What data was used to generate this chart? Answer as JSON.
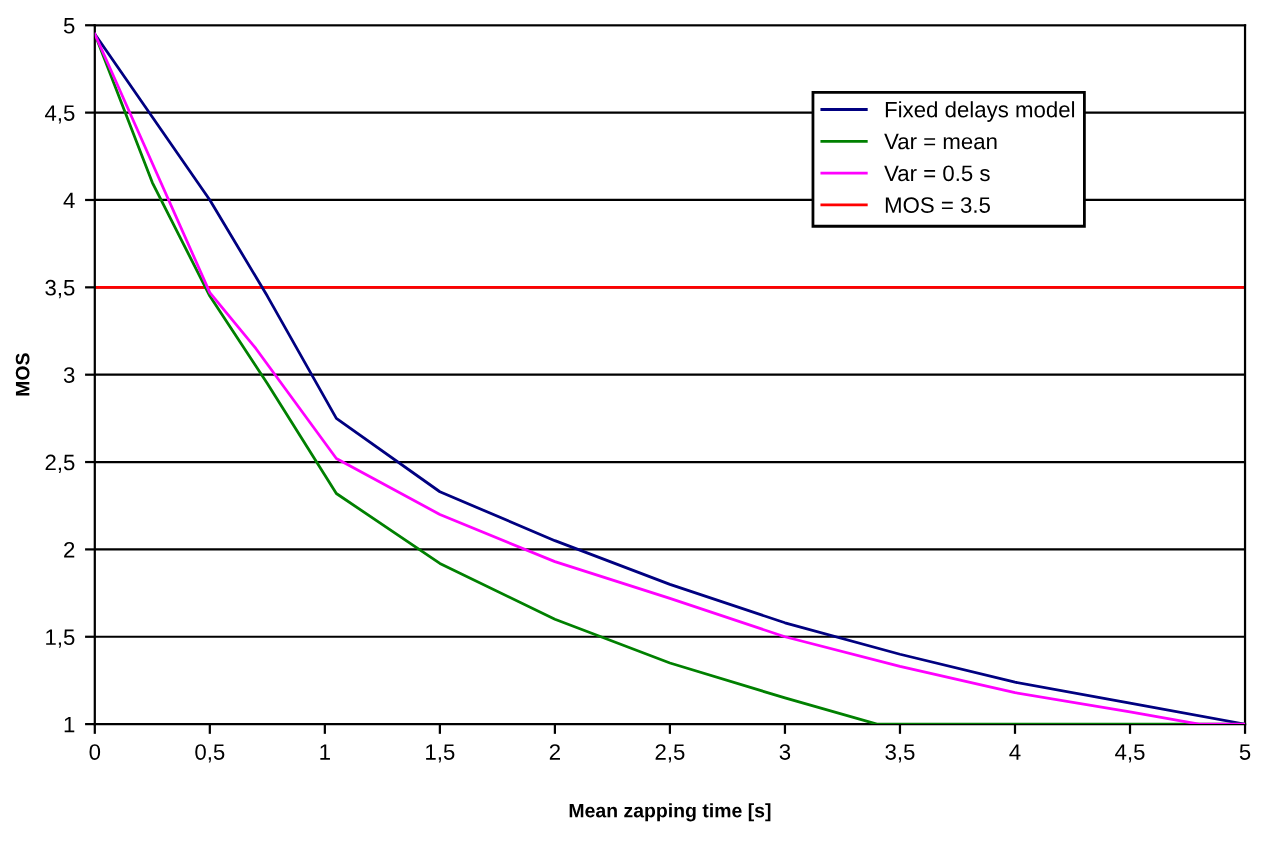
{
  "chart_data": {
    "type": "line",
    "xlabel": "Mean zapping time [s]",
    "ylabel": "MOS",
    "xlim": [
      0,
      5
    ],
    "ylim": [
      1,
      5
    ],
    "xticks": [
      0,
      {
        "value": 0.5,
        "label": "0,5"
      },
      1,
      {
        "value": 1.5,
        "label": "1,5"
      },
      2,
      {
        "value": 2.5,
        "label": "2,5"
      },
      3,
      {
        "value": 3.5,
        "label": "3,5"
      },
      4,
      {
        "value": 4.5,
        "label": "4,5"
      },
      5
    ],
    "yticks": [
      1,
      {
        "value": 1.5,
        "label": "1,5"
      },
      2,
      {
        "value": 2.5,
        "label": "2,5"
      },
      3,
      {
        "value": 3.5,
        "label": "3,5"
      },
      4,
      {
        "value": 4.5,
        "label": "4,5"
      },
      5
    ],
    "grid": "y",
    "legend": "top right",
    "marker": "none",
    "line_style": "solid",
    "series": [
      {
        "name": "Fixed delays model",
        "color": "#000080",
        "x": [
          0,
          0.5,
          0.75,
          1.05,
          1.5,
          2,
          2.5,
          3,
          3.5,
          4,
          4.5,
          5
        ],
        "values": [
          4.95,
          4.0,
          3.45,
          2.75,
          2.33,
          2.05,
          1.8,
          1.58,
          1.4,
          1.24,
          1.12,
          1.0
        ]
      },
      {
        "name": "Var = mean",
        "color": "#008000",
        "x": [
          0,
          0.25,
          0.5,
          0.75,
          1.05,
          1.5,
          2,
          2.5,
          3,
          3.4,
          5
        ],
        "values": [
          4.95,
          4.1,
          3.45,
          2.95,
          2.32,
          1.92,
          1.6,
          1.35,
          1.15,
          1.0,
          1.0
        ]
      },
      {
        "name": "Var = 0.5 s",
        "color": "#ff00ff",
        "x": [
          0,
          0.5,
          0.7,
          1.05,
          1.5,
          2,
          2.5,
          3,
          3.5,
          4,
          4.5,
          4.8,
          5
        ],
        "values": [
          4.95,
          3.47,
          3.15,
          2.52,
          2.2,
          1.93,
          1.72,
          1.5,
          1.33,
          1.18,
          1.07,
          1.0,
          1.0
        ]
      }
    ],
    "ref_lines": [
      {
        "axis": "y",
        "value": 3.5,
        "label": "MOS = 3.5",
        "color": "#ff0000"
      }
    ]
  }
}
